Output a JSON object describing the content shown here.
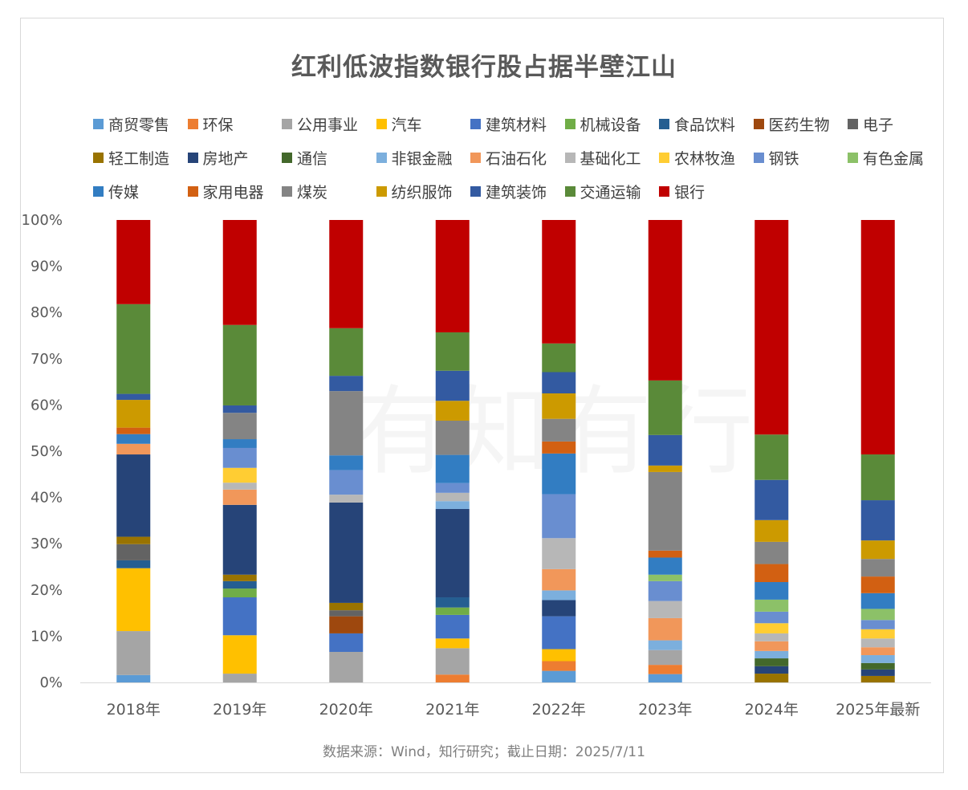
{
  "title": "红利低波指数银行股占据半壁江山",
  "footer": "数据来源：Wind，知行研究；截止日期：2025/7/11",
  "watermark": "有知有行",
  "chart_data": {
    "type": "bar",
    "stacked": true,
    "percent": true,
    "title": "红利低波指数银行股占据半壁江山",
    "xlabel": "",
    "ylabel": "",
    "ylim": [
      0,
      100
    ],
    "yticks": [
      "0%",
      "10%",
      "20%",
      "30%",
      "40%",
      "50%",
      "60%",
      "70%",
      "80%",
      "90%",
      "100%"
    ],
    "grid": false,
    "legend": "top",
    "categories": [
      "2018年",
      "2019年",
      "2020年",
      "2021年",
      "2022年",
      "2023年",
      "2024年",
      "2025年最新"
    ],
    "series": [
      {
        "name": "商贸零售",
        "color": "#5B9BD5",
        "values": [
          1.6,
          0,
          0,
          0,
          2.5,
          1.8,
          0,
          0
        ]
      },
      {
        "name": "环保",
        "color": "#ED7D31",
        "values": [
          0,
          0,
          0,
          1.7,
          2.1,
          2.0,
          0,
          0
        ]
      },
      {
        "name": "公用事业",
        "color": "#A5A5A5",
        "values": [
          9.5,
          1.9,
          6.6,
          5.7,
          0,
          3.2,
          0,
          0
        ]
      },
      {
        "name": "汽车",
        "color": "#FFC000",
        "values": [
          13.6,
          8.3,
          0,
          2.1,
          2.6,
          0,
          0,
          0
        ]
      },
      {
        "name": "建筑材料",
        "color": "#4472C4",
        "values": [
          0,
          8.2,
          4.0,
          5.1,
          7.1,
          0,
          0,
          0
        ]
      },
      {
        "name": "机械设备",
        "color": "#70AD47",
        "values": [
          0,
          1.9,
          0,
          1.6,
          0,
          0,
          0,
          0
        ]
      },
      {
        "name": "食品饮料",
        "color": "#255E91",
        "values": [
          1.7,
          1.6,
          0,
          2.2,
          0,
          0,
          0,
          0
        ]
      },
      {
        "name": "医药生物",
        "color": "#9E480E",
        "values": [
          0,
          0,
          3.7,
          0,
          0,
          0,
          0,
          0
        ]
      },
      {
        "name": "电子",
        "color": "#636363",
        "values": [
          3.5,
          0,
          1.3,
          0,
          0,
          0,
          0,
          0
        ]
      },
      {
        "name": "轻工制造",
        "color": "#997300",
        "values": [
          1.6,
          1.4,
          1.6,
          0,
          0,
          0,
          1.9,
          1.4
        ]
      },
      {
        "name": "房地产",
        "color": "#264478",
        "values": [
          17.8,
          15.1,
          21.7,
          19.1,
          3.5,
          0,
          1.6,
          1.4
        ]
      },
      {
        "name": "通信",
        "color": "#43682B",
        "values": [
          0,
          0,
          0,
          0,
          0,
          0,
          1.7,
          1.4
        ]
      },
      {
        "name": "非银金融",
        "color": "#7CAFDD",
        "values": [
          0,
          0,
          0,
          1.7,
          2.1,
          2.1,
          1.6,
          1.7
        ]
      },
      {
        "name": "石油石化",
        "color": "#F1975A",
        "values": [
          2.3,
          3.3,
          0,
          0,
          4.6,
          4.8,
          2.1,
          1.7
        ]
      },
      {
        "name": "基础化工",
        "color": "#B7B7B7",
        "values": [
          0,
          1.5,
          1.7,
          1.8,
          6.7,
          3.7,
          1.7,
          1.9
        ]
      },
      {
        "name": "农林牧渔",
        "color": "#FFCD33",
        "values": [
          0,
          3.2,
          0,
          0,
          0,
          0,
          2.2,
          2.0
        ]
      },
      {
        "name": "钢铁",
        "color": "#698ED0",
        "values": [
          0,
          4.3,
          5.3,
          2.1,
          9.5,
          4.3,
          2.5,
          2.0
        ]
      },
      {
        "name": "有色金属",
        "color": "#8CC168",
        "values": [
          0,
          0,
          0,
          0,
          0,
          1.4,
          2.6,
          2.4
        ]
      },
      {
        "name": "传媒",
        "color": "#327DC2",
        "values": [
          2.1,
          1.9,
          3.2,
          6.1,
          8.8,
          3.7,
          3.8,
          3.4
        ]
      },
      {
        "name": "家用电器",
        "color": "#D26012",
        "values": [
          1.4,
          0,
          0,
          0,
          2.6,
          1.5,
          3.9,
          3.6
        ]
      },
      {
        "name": "煤炭",
        "color": "#848484",
        "values": [
          0,
          5.7,
          13.9,
          7.4,
          4.9,
          17.0,
          4.8,
          3.8
        ]
      },
      {
        "name": "纺织服饰",
        "color": "#CC9A00",
        "values": [
          6.0,
          0,
          0,
          4.3,
          5.5,
          1.4,
          4.7,
          4.0
        ]
      },
      {
        "name": "建筑装饰",
        "color": "#335AA1",
        "values": [
          1.3,
          1.6,
          3.3,
          6.5,
          4.6,
          6.6,
          8.7,
          8.7
        ]
      },
      {
        "name": "交通运输",
        "color": "#5A8A39",
        "values": [
          19.4,
          17.4,
          10.3,
          8.3,
          6.2,
          11.8,
          9.8,
          9.9
        ]
      },
      {
        "name": "银行",
        "color": "#C00000",
        "values": [
          18.2,
          22.7,
          23.4,
          24.3,
          26.7,
          34.7,
          46.4,
          50.7
        ]
      }
    ]
  }
}
